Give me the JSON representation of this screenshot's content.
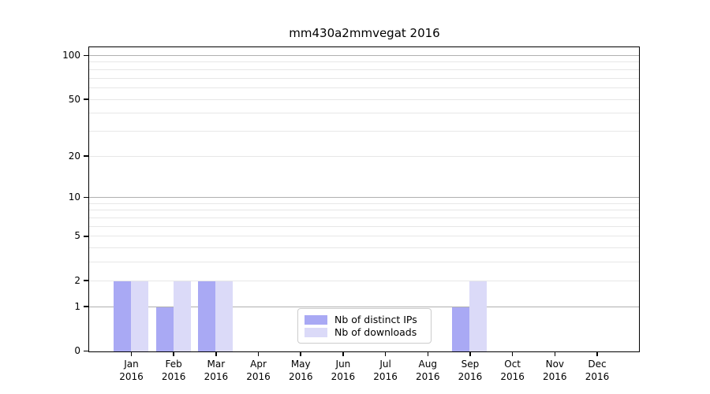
{
  "chart_data": {
    "type": "bar",
    "title": "mm430a2mmvegat 2016",
    "x": {
      "categories": [
        {
          "month": "Jan",
          "year": "2016"
        },
        {
          "month": "Feb",
          "year": "2016"
        },
        {
          "month": "Mar",
          "year": "2016"
        },
        {
          "month": "Apr",
          "year": "2016"
        },
        {
          "month": "May",
          "year": "2016"
        },
        {
          "month": "Jun",
          "year": "2016"
        },
        {
          "month": "Jul",
          "year": "2016"
        },
        {
          "month": "Aug",
          "year": "2016"
        },
        {
          "month": "Sep",
          "year": "2016"
        },
        {
          "month": "Oct",
          "year": "2016"
        },
        {
          "month": "Nov",
          "year": "2016"
        },
        {
          "month": "Dec",
          "year": "2016"
        }
      ]
    },
    "series": [
      {
        "name": "Nb of distinct IPs",
        "color": "#a9a9f4",
        "values": [
          2,
          1,
          2,
          0,
          0,
          0,
          0,
          0,
          1,
          0,
          0,
          0
        ]
      },
      {
        "name": "Nb of downloads",
        "color": "#dbdaf8",
        "values": [
          2,
          2,
          2,
          0,
          0,
          0,
          0,
          0,
          2,
          0,
          0,
          0
        ]
      }
    ],
    "y_axis": {
      "scale": "log1p",
      "tick_values": [
        0,
        1,
        2,
        5,
        10,
        20,
        50,
        100
      ],
      "tick_labels": [
        "0",
        "1",
        "2",
        "5",
        "10",
        "20",
        "50",
        "100"
      ],
      "major_grid_values": [
        1,
        10,
        100
      ],
      "minor_grid_values": [
        2,
        3,
        4,
        5,
        6,
        7,
        8,
        9,
        20,
        30,
        40,
        50,
        60,
        70,
        80,
        90
      ],
      "ylim_bottom": 0
    },
    "legend": {
      "position": "lower-center"
    },
    "colors": {
      "bar_distinct_ips": "#a9a9f4",
      "bar_downloads": "#dbdaf8",
      "grid_major": "#b0b0b0",
      "grid_minor": "#e7e7e7",
      "spine": "#000000",
      "text": "#000000",
      "legend_border": "#cccccc"
    }
  }
}
